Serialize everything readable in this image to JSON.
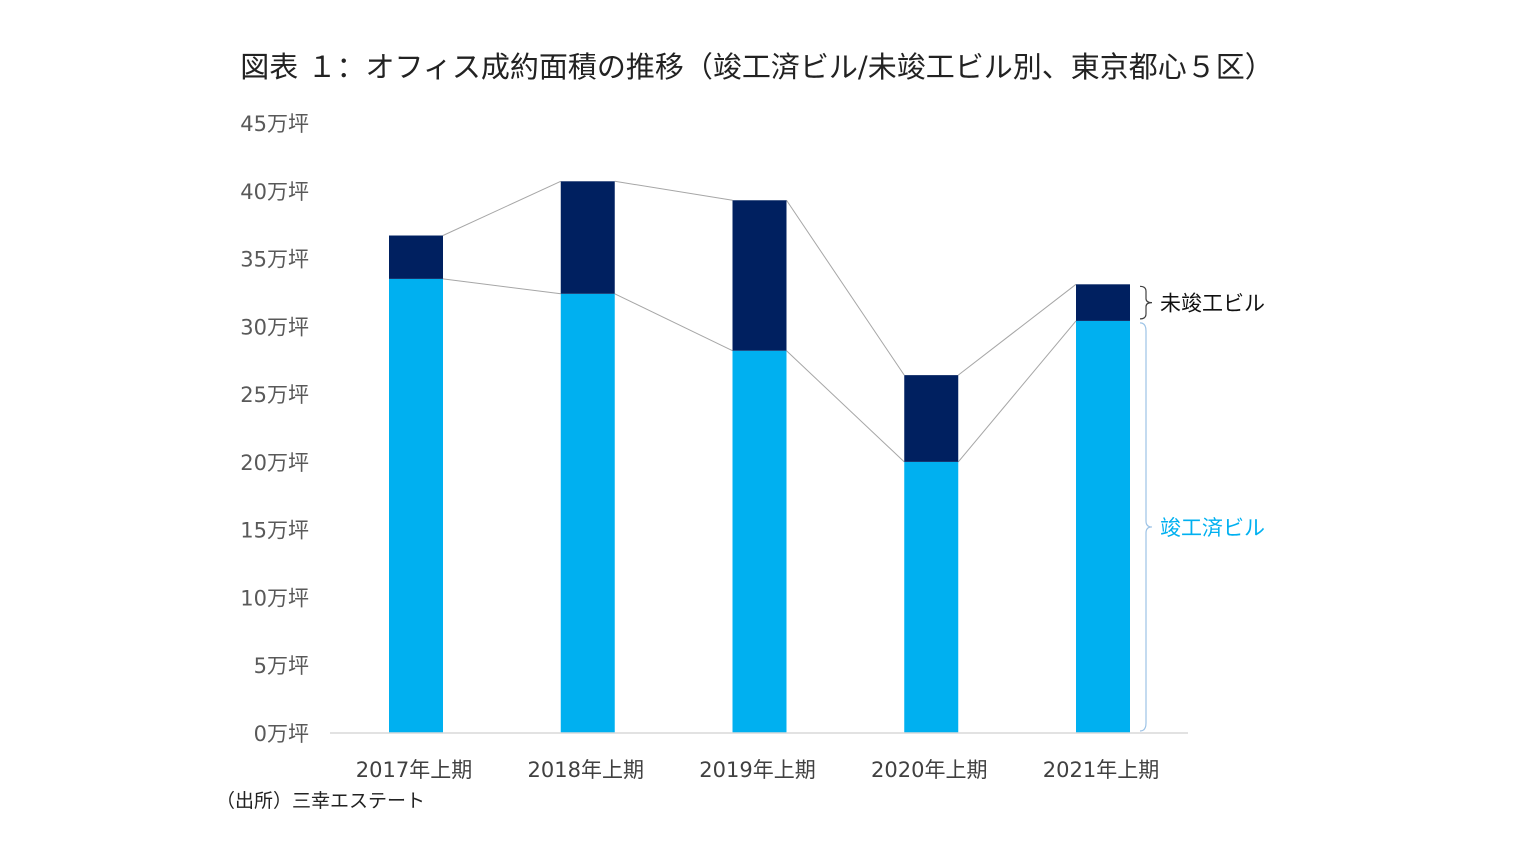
{
  "chart_data": {
    "type": "bar",
    "stacked": true,
    "title": "図表 １：オフィス成約面積の推移（竣工済ビル/未竣工ビル別、東京都心５区）",
    "categories": [
      "2017年上期",
      "2018年上期",
      "2019年上期",
      "2020年上期",
      "2021年上期"
    ],
    "series": [
      {
        "name": "竣工済ビル",
        "color": "#00b0f0",
        "values": [
          33.5,
          32.4,
          28.2,
          20.0,
          30.4
        ]
      },
      {
        "name": "未竣工ビル",
        "color": "#002060",
        "values": [
          3.2,
          8.3,
          11.1,
          6.4,
          2.7
        ]
      }
    ],
    "y_ticks": [
      0,
      5,
      10,
      15,
      20,
      25,
      30,
      35,
      40,
      45
    ],
    "y_tick_suffix": "万坪",
    "ylim": [
      0,
      45
    ],
    "grid": false,
    "connector_lines": true,
    "legend_position": "right"
  },
  "source": "（出所）三幸エステート"
}
